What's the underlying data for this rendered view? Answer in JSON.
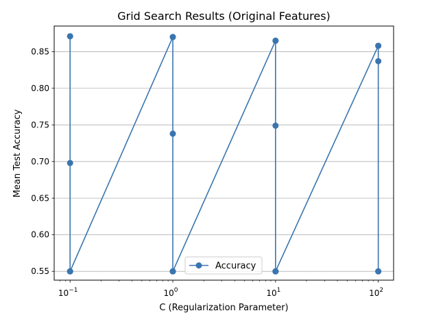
{
  "chart_data": {
    "type": "line",
    "title": "Grid Search Results (Original Features)",
    "xlabel": "C (Regularization Parameter)",
    "ylabel": "Mean Test Accuracy",
    "xscale": "log",
    "xlim": [
      0.07,
      141
    ],
    "ylim": [
      0.538,
      0.885
    ],
    "x_ticks": [
      {
        "value": 0.1,
        "base": "10",
        "exp": "−1"
      },
      {
        "value": 1,
        "base": "10",
        "exp": "0"
      },
      {
        "value": 10,
        "base": "10",
        "exp": "1"
      },
      {
        "value": 100,
        "base": "10",
        "exp": "2"
      }
    ],
    "y_ticks": [
      "0.55",
      "0.60",
      "0.65",
      "0.70",
      "0.75",
      "0.80",
      "0.85"
    ],
    "grid": "horizontal",
    "legend_position": "lower-center",
    "series": [
      {
        "name": "Accuracy",
        "color": "#3a75af",
        "marker": "circle",
        "points": [
          {
            "x": 0.1,
            "y": 0.871
          },
          {
            "x": 0.1,
            "y": 0.55
          },
          {
            "x": 0.1,
            "y": 0.698
          },
          {
            "x": 0.1,
            "y": 0.55
          },
          {
            "x": 0.1,
            "y": 0.871
          },
          {
            "x": 0.1,
            "y": 0.55
          },
          {
            "x": 1,
            "y": 0.87
          },
          {
            "x": 1,
            "y": 0.55
          },
          {
            "x": 1,
            "y": 0.738
          },
          {
            "x": 1,
            "y": 0.55
          },
          {
            "x": 1,
            "y": 0.87
          },
          {
            "x": 1,
            "y": 0.55
          },
          {
            "x": 10,
            "y": 0.865
          },
          {
            "x": 10,
            "y": 0.55
          },
          {
            "x": 10,
            "y": 0.749
          },
          {
            "x": 10,
            "y": 0.55
          },
          {
            "x": 10,
            "y": 0.865
          },
          {
            "x": 10,
            "y": 0.55
          },
          {
            "x": 100,
            "y": 0.858
          },
          {
            "x": 100,
            "y": 0.55
          },
          {
            "x": 100,
            "y": 0.837
          },
          {
            "x": 100,
            "y": 0.55
          },
          {
            "x": 100,
            "y": 0.858
          }
        ]
      }
    ]
  }
}
